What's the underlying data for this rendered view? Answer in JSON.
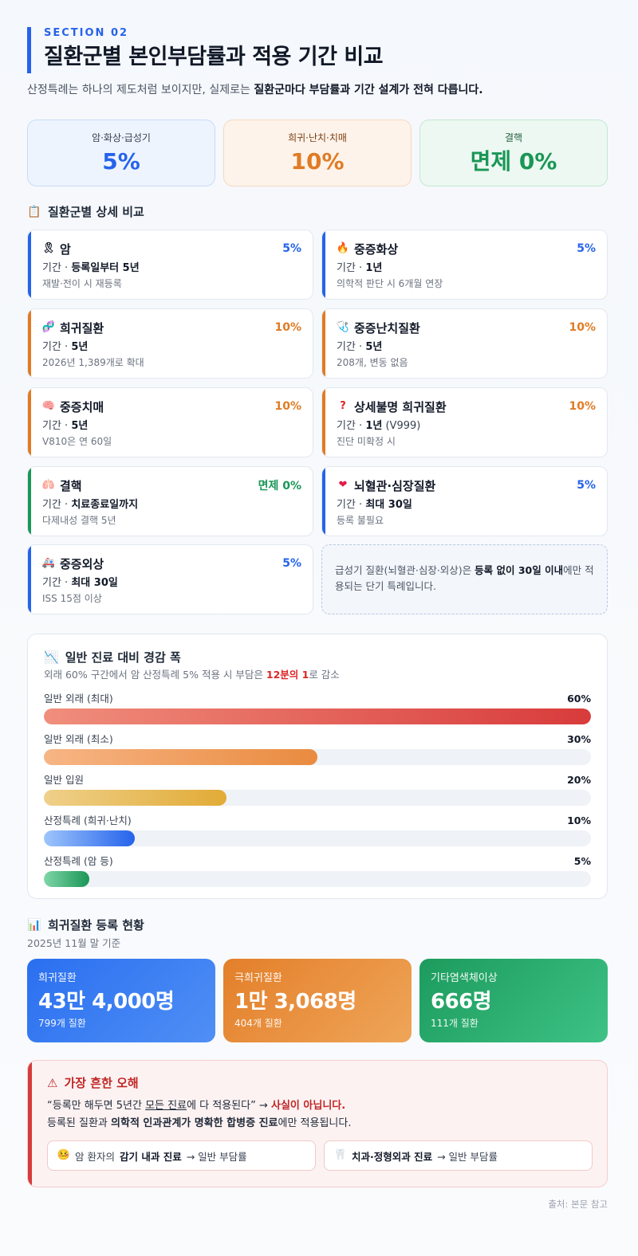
{
  "header": {
    "section_tag": "SECTION 02",
    "title": "질환군별 본인부담률과 적용 기간 비교",
    "intro_prefix": "산정특례는 하나의 제도처럼 보이지만, 실제로는 ",
    "intro_bold": "질환군마다 부담률과 기간 설계가 전혀 다릅니다."
  },
  "summary": [
    {
      "label": "암·화상·급성기",
      "value": "5%"
    },
    {
      "label": "희귀·난치·치매",
      "value": "10%"
    },
    {
      "label": "결핵",
      "value": "면제 0%"
    }
  ],
  "detail_section": {
    "title": "질환군별 상세 비교",
    "icon": "clipboard-icon"
  },
  "detail_cards": [
    {
      "name": "암",
      "icon": "ribbon-icon",
      "rate": "5%",
      "period_label": "기간 · ",
      "period_value": "등록일부터 5년",
      "note": "재발·전이 시 재등록",
      "color": "blue"
    },
    {
      "name": "중증화상",
      "icon": "fire-icon",
      "rate": "5%",
      "period_label": "기간 · ",
      "period_value": "1년",
      "note": "의학적 판단 시 6개월 연장",
      "color": "blue"
    },
    {
      "name": "희귀질환",
      "icon": "dna-icon",
      "rate": "10%",
      "period_label": "기간 · ",
      "period_value": "5년",
      "note": "2026년 1,389개로 확대",
      "color": "orange"
    },
    {
      "name": "중증난치질환",
      "icon": "stethoscope-icon",
      "rate": "10%",
      "period_label": "기간 · ",
      "period_value": "5년",
      "note": "208개, 변동 없음",
      "color": "orange"
    },
    {
      "name": "중증치매",
      "icon": "brain-icon",
      "rate": "10%",
      "period_label": "기간 · ",
      "period_value": "5년",
      "note": "V810은 연 60일",
      "color": "orange"
    },
    {
      "name": "상세불명 희귀질환",
      "icon": "question-icon",
      "rate": "10%",
      "period_label": "기간 · ",
      "period_value": "1년",
      "period_extra": " (V999)",
      "note": "진단 미확정 시",
      "color": "orange"
    },
    {
      "name": "결핵",
      "icon": "lungs-icon",
      "rate": "면제 0%",
      "period_label": "기간 · ",
      "period_value": "치료종료일까지",
      "note": "다제내성 결핵 5년",
      "color": "green"
    },
    {
      "name": "뇌혈관·심장질환",
      "icon": "heart-icon",
      "rate": "5%",
      "period_label": "기간 · ",
      "period_value": "최대 30일",
      "note": "등록 불필요",
      "color": "blue"
    },
    {
      "name": "중증외상",
      "icon": "ambulance-icon",
      "rate": "5%",
      "period_label": "기간 · ",
      "period_value": "최대 30일",
      "note": "ISS 15점 이상",
      "color": "blue"
    }
  ],
  "acute_note": {
    "prefix": "급성기 질환(뇌혈관·심장·외상)은 ",
    "bold1": "등록 없이 30일 이내",
    "suffix": "에만 적용되는 단기 특례입니다."
  },
  "reduction": {
    "title": "일반 진료 대비 경감 폭",
    "icon": "chart-down-icon",
    "sub_prefix": "외래 60% 구간에서 암 산정특례 5% 적용 시 부담은 ",
    "sub_bold": "12분의 1",
    "sub_suffix": "로 감소",
    "bars": [
      {
        "label": "일반 외래 (최대)",
        "value": 60,
        "display": "60%",
        "color": "red"
      },
      {
        "label": "일반 외래 (최소)",
        "value": 30,
        "display": "30%",
        "color": "orange"
      },
      {
        "label": "일반 입원",
        "value": 20,
        "display": "20%",
        "color": "yellow"
      },
      {
        "label": "산정특례 (희귀·난치)",
        "value": 10,
        "display": "10%",
        "color": "blue"
      },
      {
        "label": "산정특례 (암 등)",
        "value": 5,
        "display": "5%",
        "color": "green"
      }
    ],
    "max": 60
  },
  "registration": {
    "title": "희귀질환 등록 현황",
    "icon": "bar-chart-icon",
    "sub": "2025년 11월 말 기준",
    "cards": [
      {
        "label": "희귀질환",
        "value": "43만 4,000명",
        "note": "799개 질환"
      },
      {
        "label": "극희귀질환",
        "value": "1만 3,068명",
        "note": "404개 질환"
      },
      {
        "label": "기타염색체이상",
        "value": "666명",
        "note": "111개 질환"
      }
    ]
  },
  "warning": {
    "title": "가장 흔한 오해",
    "icon": "warning-icon",
    "line1_a": "“등록만 해두면 5년간 ",
    "line1_u": "모든 진료",
    "line1_b": "에 다 적용된다” → ",
    "line1_red": "사실이 아닙니다.",
    "line2_a": "등록된 질환과 ",
    "line2_b": "의학적 인과관계가 명확한 합병증 진료",
    "line2_c": "에만 적용됩니다.",
    "box1_a": "암 환자의 ",
    "box1_b": "감기 내과 진료",
    "box1_c": " → 일반 부담률",
    "box2_b": "치과·정형외과 진료",
    "box2_c": " → 일반 부담률"
  },
  "source": "출처: 본문 참고"
}
